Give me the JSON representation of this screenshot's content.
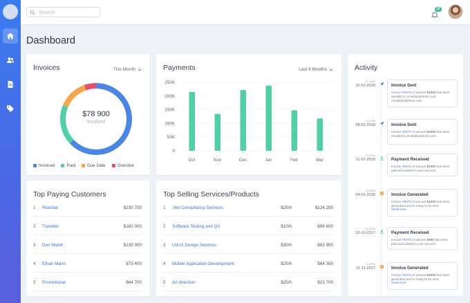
{
  "search": {
    "placeholder": "Search"
  },
  "notifications": {
    "count": "12"
  },
  "page_title": "Dashboard",
  "invoices": {
    "title": "Invoices",
    "filter": "This Month",
    "amount": "$78 900",
    "amount_label": "Invoiced",
    "legend": [
      "Invoiced",
      "Paid",
      "Due Date",
      "Overdue"
    ],
    "colors": {
      "invoiced": "#4a86e8",
      "paid": "#4fd1a5",
      "due": "#f5a54a",
      "overdue": "#e8506a"
    }
  },
  "payments": {
    "title": "Payments",
    "filter": "Last 6 Months"
  },
  "chart_data": {
    "type": "bar",
    "categories": [
      "Oct",
      "Nov",
      "Dec",
      "Jan",
      "Feb",
      "Mar"
    ],
    "values": [
      215000,
      135000,
      222000,
      238000,
      148000,
      118000
    ],
    "ylim": [
      0,
      250000
    ],
    "yticks": [
      "0",
      "50K",
      "100K",
      "150K",
      "200K",
      "250K"
    ],
    "color": "#4fd1a5",
    "grid": true
  },
  "activity": {
    "title": "Activity",
    "items": [
      {
        "time": "11:15AM",
        "date": "11-02-2018",
        "title": "Invoice Sent",
        "desc_pre": "Invoice ",
        "ref": "#5079",
        "desc_mid": " of amount ",
        "amount": "$1300",
        "desc_post": " has been emailed to email@address.com, email2@address.com",
        "link": "",
        "icon": "send-icon"
      },
      {
        "time": "02:41PM",
        "date": "08-02-2018",
        "title": "Invoice Sent",
        "desc_pre": "Invoice ",
        "ref": "#5079",
        "desc_mid": " of amount ",
        "amount": "$2000",
        "desc_post": " has been emailed to email@address.com",
        "link": "",
        "icon": "send-icon"
      },
      {
        "time": "02:07PM",
        "date": "11-01-2018",
        "title": "Payment Received",
        "desc_pre": "Invoice ",
        "ref": "#5072",
        "desc_mid": " of amount ",
        "amount": "$1300",
        "desc_post": " has been paid and added to your account.",
        "link": "",
        "icon": "download-icon"
      },
      {
        "time": "09:46AM",
        "date": "04-01-2018",
        "title": "Invoice Generated",
        "desc_pre": "Invoice ",
        "ref": "#5079",
        "desc_mid": " of amount ",
        "amount": "$1300",
        "desc_post": " has been generated and is ready to be sent.",
        "link": "Send now",
        "icon": "invoice-icon"
      },
      {
        "time": "11:44PM",
        "date": "10-12-2017",
        "title": "Payment Received",
        "desc_pre": "Invoice ",
        "ref": "#5079",
        "desc_mid": " of amount ",
        "amount": "$900",
        "desc_post": " has been paid and added to your account.",
        "link": "",
        "icon": "download-icon"
      },
      {
        "time": "12:00PM",
        "date": "11-11-2017",
        "title": "Invoice Generated",
        "desc_pre": "Invoice ",
        "ref": "#5079",
        "desc_mid": " of amount ",
        "amount": "$2000",
        "desc_post": " has been generated and is ready to be sent.",
        "link": "Send now",
        "icon": "invoice-icon"
      }
    ]
  },
  "top_customers": {
    "title": "Top Paying Customers",
    "rows": [
      {
        "num": "1",
        "name": "Reactial",
        "value": "$230 700"
      },
      {
        "num": "2",
        "name": "Traveller",
        "value": "$182 000"
      },
      {
        "num": "3",
        "name": "Don Walsh",
        "value": "$139 900"
      },
      {
        "num": "4",
        "name": "Ethan Mann",
        "value": "$75 400"
      },
      {
        "num": "5",
        "name": "Promotional",
        "value": "$64 700"
      }
    ]
  },
  "top_services": {
    "title": "Top Selling Services/Products",
    "rows": [
      {
        "num": "1",
        "name": ".Net Consultancy Services",
        "rate": "$25/h",
        "value": "$124 200"
      },
      {
        "num": "2",
        "name": "Software Testing and QA",
        "rate": "$10/h",
        "value": "$99 600"
      },
      {
        "num": "3",
        "name": "UI/UX Design Services",
        "rate": "$30/h",
        "value": "$93 900"
      },
      {
        "num": "4",
        "name": "Mobile Application Development",
        "rate": "$25/h",
        "value": "$64 300"
      },
      {
        "num": "5",
        "name": "Art direction",
        "rate": "$25/h",
        "value": "$23 700"
      }
    ]
  }
}
